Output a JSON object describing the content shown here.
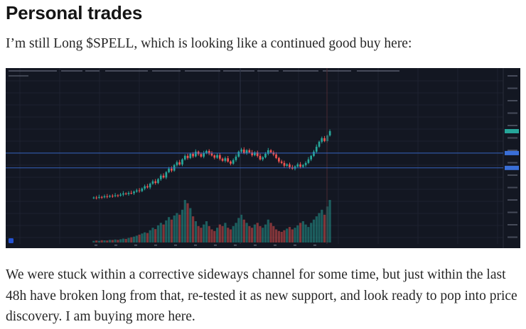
{
  "post": {
    "heading": "Personal trades",
    "intro": "I’m still Long $SPELL, which is looking like a continued good buy here:",
    "body": "We were stuck within a corrective sideways channel for some time, but just within the last 48h have broken long from that, re-tested it as new support, and look ready to pop into price discovery. I am buying more here."
  },
  "chart_colors": {
    "background": "#131722",
    "up": "#26a69a",
    "down": "#ef5350",
    "grid": "#1e2230",
    "level_line": "#2962ff"
  },
  "chart_data": {
    "type": "candlestick",
    "ticker": "$SPELL",
    "price_series": [
      6,
      5.8,
      6.4,
      6.2,
      6.9,
      6.6,
      7.2,
      7.0,
      7.6,
      7.4,
      8.1,
      8.9,
      8.5,
      9.3,
      9.0,
      10.2,
      11.1,
      10.6,
      12.4,
      14.0,
      13.2,
      15.8,
      17.5,
      16.3,
      19.0,
      21.5,
      20.2,
      24.0,
      26.5,
      25.1,
      29.0,
      31.0,
      29.4,
      33.0,
      35.5,
      34.0,
      37.0,
      35.2,
      38.5,
      36.8,
      35.0,
      37.5,
      39.0,
      37.2,
      35.8,
      34.2,
      36.0,
      33.5,
      32.0,
      33.8,
      31.5,
      30.0,
      32.5,
      35.0,
      38.5,
      40.0,
      37.5,
      39.5,
      38.0,
      36.0,
      38.0,
      35.5,
      33.0,
      34.5,
      37.0,
      39.5,
      38.0,
      36.5,
      34.0,
      31.5,
      30.5,
      28.5,
      29.5,
      27.5,
      26.5,
      28.0,
      29.5,
      27.8,
      29.0,
      30.5,
      33.0,
      35.5,
      38.5,
      42.0,
      45.5,
      48.0,
      46.0,
      50.0,
      53.0
    ],
    "volume_series": [
      1,
      1.2,
      1,
      1.4,
      1.3,
      1.2,
      1.6,
      1.5,
      1.8,
      1.6,
      2,
      2.4,
      2.2,
      2.8,
      3.2,
      3.6,
      4.2,
      4.8,
      5.5,
      6.2,
      5.8,
      7.5,
      9,
      8.2,
      10.5,
      12,
      11,
      13.5,
      15.5,
      14,
      16.5,
      18,
      17,
      20,
      26,
      24,
      21,
      16,
      13,
      10,
      9,
      11,
      13,
      10,
      8,
      7,
      9,
      11,
      10,
      12,
      9,
      8,
      10,
      12,
      15,
      17,
      14,
      12,
      10,
      9,
      11,
      12,
      10,
      9,
      11,
      14,
      12,
      10,
      8,
      7,
      6.5,
      7.5,
      8.5,
      9.5,
      8,
      9,
      10.5,
      12,
      13,
      11,
      9.5,
      12,
      14,
      16,
      18,
      20,
      17,
      22,
      26
    ]
  }
}
